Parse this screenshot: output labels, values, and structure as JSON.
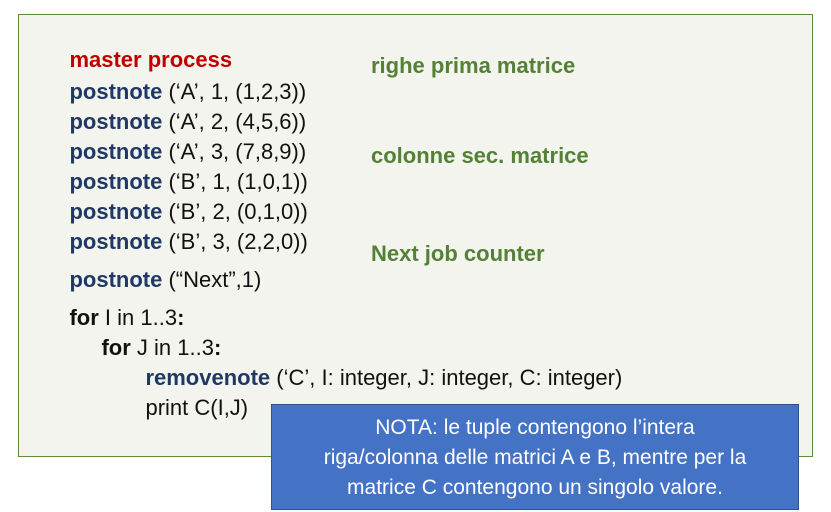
{
  "code": {
    "header": "master process",
    "postnotes": [
      {
        "kw": "postnote",
        "args": " (‘A’, 1, (1,2,3))"
      },
      {
        "kw": "postnote",
        "args": " (‘A’, 2, (4,5,6))"
      },
      {
        "kw": "postnote",
        "args": " (‘A’, 3, (7,8,9))"
      },
      {
        "kw": "postnote",
        "args": " (‘B’, 1, (1,0,1))"
      },
      {
        "kw": "postnote",
        "args": " (‘B’, 2, (0,1,0))"
      },
      {
        "kw": "postnote",
        "args": " (‘B’, 3, (2,2,0))"
      },
      {
        "kw": "postnote",
        "args": " (“Next”,1)"
      }
    ],
    "comments": {
      "rows_first": "righe prima matrice",
      "cols_second": "colonne sec. matrice",
      "next_job": "Next job counter"
    },
    "loop": {
      "for_kw": "for",
      "for_i": " I in 1..3",
      "colon": ":",
      "for_j": " J in 1..3",
      "remove_kw": "removenote",
      "remove_args": " (‘C’, I: integer, J: integer, C: integer)",
      "print": "print C(I,J)"
    }
  },
  "note": {
    "line1": "NOTA: le tuple contengono l’intera",
    "line2": "riga/colonna delle matrici A e B, mentre per la",
    "line3": "matrice C contengono un singolo valore."
  }
}
